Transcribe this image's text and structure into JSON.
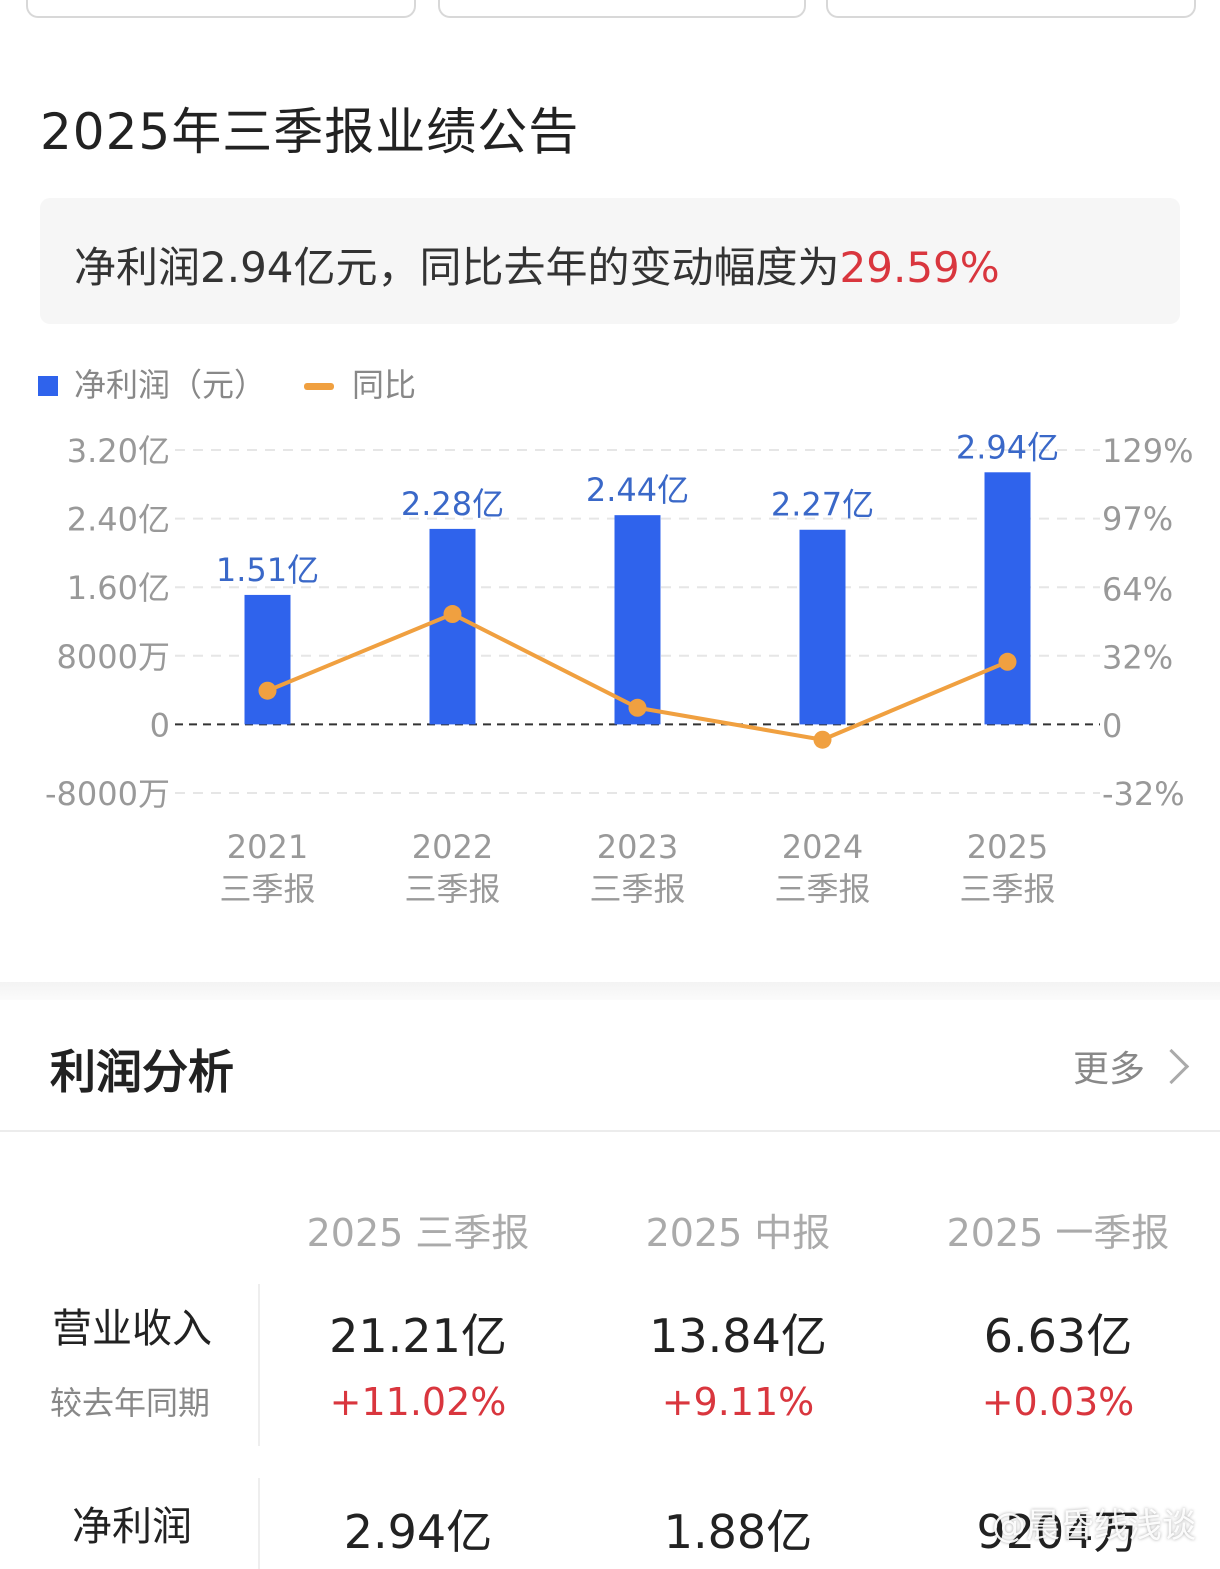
{
  "report": {
    "title": "2025年三季报业绩公告",
    "summary_prefix": "净利润2.94亿元，同比去年的变动幅度为",
    "summary_pct": "29.59%"
  },
  "colors": {
    "bar": "#2f63ec",
    "line": "#f0a040",
    "label": "#3a68c8",
    "positive": "#d9363e"
  },
  "chart_data": {
    "type": "bar",
    "legend": [
      {
        "name": "净利润（元）",
        "marker": "square"
      },
      {
        "name": "同比",
        "marker": "line"
      }
    ],
    "categories": [
      [
        "2021",
        "三季报"
      ],
      [
        "2022",
        "三季报"
      ],
      [
        "2023",
        "三季报"
      ],
      [
        "2024",
        "三季报"
      ],
      [
        "2025",
        "三季报"
      ]
    ],
    "series": [
      {
        "name": "净利润（元）",
        "axis": "left",
        "values": [
          1.51,
          2.28,
          2.44,
          2.27,
          2.94
        ],
        "labels": [
          "1.51亿",
          "2.28亿",
          "2.44亿",
          "2.27亿",
          "2.94亿"
        ]
      },
      {
        "name": "同比",
        "axis": "right",
        "values": [
          16,
          52,
          8,
          -7,
          29.59
        ]
      }
    ],
    "left_axis": {
      "ticks": [
        3.2,
        2.4,
        1.6,
        0.8,
        0,
        -0.8
      ],
      "tick_labels": [
        "3.20亿",
        "2.40亿",
        "1.60亿",
        "8000万",
        "0",
        "-8000万"
      ],
      "ylim": [
        -0.8,
        3.2
      ]
    },
    "right_axis": {
      "ticks": [
        129,
        97,
        64,
        32,
        0,
        -32
      ],
      "tick_labels": [
        "129%",
        "97%",
        "64%",
        "32%",
        "0",
        "-32%"
      ],
      "ylim": [
        -32,
        129
      ]
    },
    "grid": true
  },
  "analysis": {
    "title": "利润分析",
    "more": "更多",
    "columns": [
      "2025 三季报",
      "2025 中报",
      "2025 一季报"
    ],
    "rows": [
      {
        "label": "营业收入",
        "sub": "较去年同期",
        "values": [
          "21.21亿",
          "13.84亿",
          "6.63亿"
        ],
        "changes": [
          "+11.02%",
          "+9.11%",
          "+0.03%"
        ]
      },
      {
        "label": "净利润",
        "values": [
          "2.94亿",
          "1.88亿",
          "9204万"
        ]
      }
    ]
  },
  "watermark": "@晨昏线浅谈"
}
